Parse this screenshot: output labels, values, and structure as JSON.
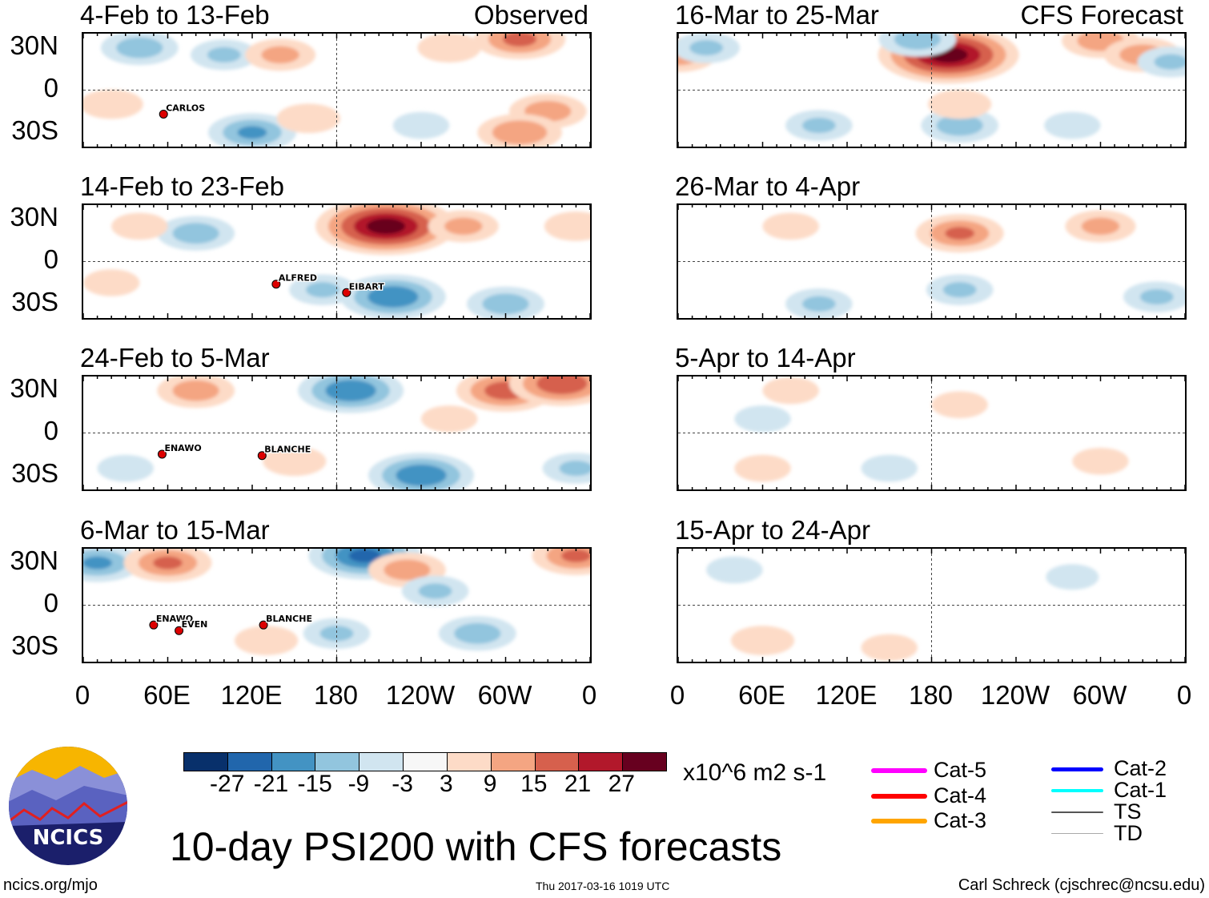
{
  "observed_label": "Observed",
  "forecast_label": "CFS Forecast",
  "lat_labels": [
    "30N",
    "0",
    "30S"
  ],
  "lon_labels": [
    "0",
    "60E",
    "120E",
    "180",
    "120W",
    "60W",
    "0"
  ],
  "colorbar": {
    "colors": [
      "#08306b",
      "#2166ac",
      "#4393c3",
      "#92c5de",
      "#d1e5f0",
      "#f7f7f7",
      "#fddbc7",
      "#f4a582",
      "#d6604d",
      "#b2182b",
      "#67001f"
    ],
    "ticks": [
      "-27",
      "-21",
      "-15",
      "-9",
      "-3",
      "3",
      "9",
      "15",
      "21",
      "27"
    ],
    "units": "x10^6 m2 s-1"
  },
  "title": "10-day PSI200 with CFS forecasts",
  "logo_text": "NCICS",
  "footer": {
    "left": "ncics.org/mjo",
    "center": "Thu 2017-03-16 1019 UTC",
    "right": "Carl Schreck (cjschrec@ncsu.edu)"
  },
  "legend": [
    {
      "label": "Cat-5",
      "color": "#ff00ff"
    },
    {
      "label": "Cat-4",
      "color": "#ff0000"
    },
    {
      "label": "Cat-3",
      "color": "#ffa500"
    },
    {
      "label": "Cat-2",
      "color": "#0000ff"
    },
    {
      "label": "Cat-1",
      "color": "#00ffff"
    },
    {
      "label": "TS",
      "color": "#555555"
    },
    {
      "label": "TD",
      "color": "#aaaaaa"
    }
  ],
  "chart_data": {
    "type": "heatmap",
    "variable": "200-hPa streamfunction anomaly",
    "lon_range": [
      0,
      360
    ],
    "lat_range": [
      -40,
      40
    ],
    "panels": [
      {
        "title": "4-Feb to 13-Feb",
        "kind": "observed",
        "anomalies": [
          [
            40,
            30,
            -12
          ],
          [
            100,
            25,
            -9
          ],
          [
            140,
            25,
            10
          ],
          [
            260,
            30,
            8
          ],
          [
            310,
            36,
            16
          ],
          [
            120,
            -30,
            -15
          ],
          [
            160,
            -20,
            8
          ],
          [
            330,
            -15,
            12
          ],
          [
            310,
            -30,
            14
          ],
          [
            20,
            -10,
            8
          ],
          [
            240,
            -25,
            -6
          ]
        ],
        "storms": [
          {
            "name": "CARLOS",
            "lon": 57,
            "lat": -17
          }
        ]
      },
      {
        "title": "14-Feb to 23-Feb",
        "kind": "observed",
        "anomalies": [
          [
            215,
            25,
            30
          ],
          [
            270,
            25,
            10
          ],
          [
            80,
            20,
            -12
          ],
          [
            40,
            25,
            6
          ],
          [
            220,
            -25,
            -20
          ],
          [
            170,
            -20,
            -9
          ],
          [
            300,
            -30,
            -12
          ],
          [
            350,
            25,
            8
          ],
          [
            20,
            -15,
            6
          ]
        ],
        "storms": [
          {
            "name": "ALFRED",
            "lon": 137,
            "lat": -16
          },
          {
            "name": "EIBART",
            "lon": 187,
            "lat": -22
          }
        ]
      },
      {
        "title": "24-Feb to 5-Mar",
        "kind": "observed",
        "anomalies": [
          [
            80,
            30,
            12
          ],
          [
            190,
            30,
            -20
          ],
          [
            300,
            30,
            18
          ],
          [
            340,
            35,
            20
          ],
          [
            240,
            -30,
            -20
          ],
          [
            150,
            -20,
            8
          ],
          [
            30,
            -25,
            -6
          ],
          [
            260,
            10,
            6
          ],
          [
            350,
            -25,
            -9
          ]
        ],
        "storms": [
          {
            "name": "ENAWO",
            "lon": 56,
            "lat": -15
          },
          {
            "name": "BLANCHE",
            "lon": 127,
            "lat": -16
          }
        ]
      },
      {
        "title": "6-Mar to 15-Mar",
        "kind": "observed",
        "anomalies": [
          [
            10,
            30,
            -15
          ],
          [
            60,
            30,
            15
          ],
          [
            200,
            35,
            -22
          ],
          [
            230,
            25,
            12
          ],
          [
            250,
            10,
            -9
          ],
          [
            350,
            35,
            15
          ],
          [
            280,
            -20,
            -12
          ],
          [
            130,
            -25,
            8
          ],
          [
            180,
            -20,
            -9
          ]
        ],
        "storms": [
          {
            "name": "ENAWO",
            "lon": 50,
            "lat": -14
          },
          {
            "name": "EVEN",
            "lon": 68,
            "lat": -18
          },
          {
            "name": "BLANCHE",
            "lon": 128,
            "lat": -14
          }
        ]
      },
      {
        "title": "16-Mar to 25-Mar",
        "kind": "forecast",
        "anomalies": [
          [
            192,
            25,
            30
          ],
          [
            170,
            36,
            -12
          ],
          [
            0,
            25,
            12
          ],
          [
            20,
            30,
            -9
          ],
          [
            300,
            35,
            12
          ],
          [
            330,
            25,
            12
          ],
          [
            350,
            20,
            -9
          ],
          [
            200,
            -25,
            -12
          ],
          [
            200,
            -10,
            8
          ],
          [
            100,
            -25,
            -9
          ],
          [
            280,
            -25,
            -6
          ]
        ],
        "storms": []
      },
      {
        "title": "26-Mar to 4-Apr",
        "kind": "forecast",
        "anomalies": [
          [
            200,
            20,
            15
          ],
          [
            300,
            25,
            10
          ],
          [
            80,
            25,
            6
          ],
          [
            200,
            -20,
            -9
          ],
          [
            100,
            -30,
            -9
          ],
          [
            340,
            -25,
            -9
          ]
        ],
        "storms": []
      },
      {
        "title": "5-Apr to 14-Apr",
        "kind": "forecast",
        "anomalies": [
          [
            200,
            20,
            6
          ],
          [
            80,
            30,
            6
          ],
          [
            60,
            10,
            -6
          ],
          [
            60,
            -25,
            6
          ],
          [
            150,
            -25,
            -6
          ],
          [
            300,
            -20,
            6
          ]
        ],
        "storms": []
      },
      {
        "title": "15-Apr to 24-Apr",
        "kind": "forecast",
        "anomalies": [
          [
            40,
            25,
            -6
          ],
          [
            60,
            -25,
            8
          ],
          [
            150,
            -30,
            6
          ],
          [
            280,
            20,
            -5
          ]
        ],
        "storms": []
      }
    ]
  }
}
